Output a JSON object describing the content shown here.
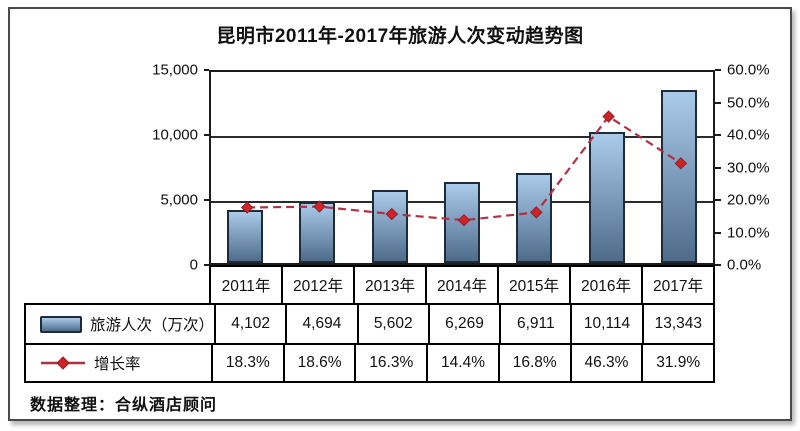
{
  "title": "昆明市2011年-2017年旅游人次变动趋势图",
  "footer_note": "数据整理：合纵酒店顾问",
  "colors": {
    "bar_gradient_top": "#abcbeb",
    "bar_gradient_bottom": "#4e6b8a",
    "bar_border": "#1d2b3a",
    "line_color": "#b03042",
    "marker_color": "#d02424",
    "axis_color": "#1c1c1c"
  },
  "chart_data": {
    "type": "bar+line combo",
    "categories": [
      "2011年",
      "2012年",
      "2013年",
      "2014年",
      "2015年",
      "2016年",
      "2017年"
    ],
    "series": [
      {
        "name": "旅游人次（万次）",
        "type": "bar",
        "axis": "left",
        "values": [
          4102,
          4694,
          5602,
          6269,
          6911,
          10114,
          13343
        ],
        "values_display": [
          "4,102",
          "4,694",
          "5,602",
          "6,269",
          "6,911",
          "10,114",
          "13,343"
        ]
      },
      {
        "name": "增长率",
        "type": "line",
        "axis": "right",
        "values": [
          18.3,
          18.6,
          16.3,
          14.4,
          16.8,
          46.3,
          31.9
        ],
        "values_display": [
          "18.3%",
          "18.6%",
          "16.3%",
          "14.4%",
          "16.8%",
          "46.3%",
          "31.9%"
        ]
      }
    ],
    "left_axis": {
      "min": 0,
      "max": 15000,
      "tick_step": 5000,
      "ticks": [
        "15,000",
        "10,000",
        "5,000",
        "0"
      ]
    },
    "right_axis": {
      "min": 0,
      "max": 60,
      "tick_step": 10,
      "ticks": [
        "60.0%",
        "50.0%",
        "40.0%",
        "30.0%",
        "20.0%",
        "10.0%",
        "0.0%"
      ]
    },
    "grid": "horizontal gridlines at left-axis steps",
    "legend_position": "table rows at bottom-left"
  }
}
